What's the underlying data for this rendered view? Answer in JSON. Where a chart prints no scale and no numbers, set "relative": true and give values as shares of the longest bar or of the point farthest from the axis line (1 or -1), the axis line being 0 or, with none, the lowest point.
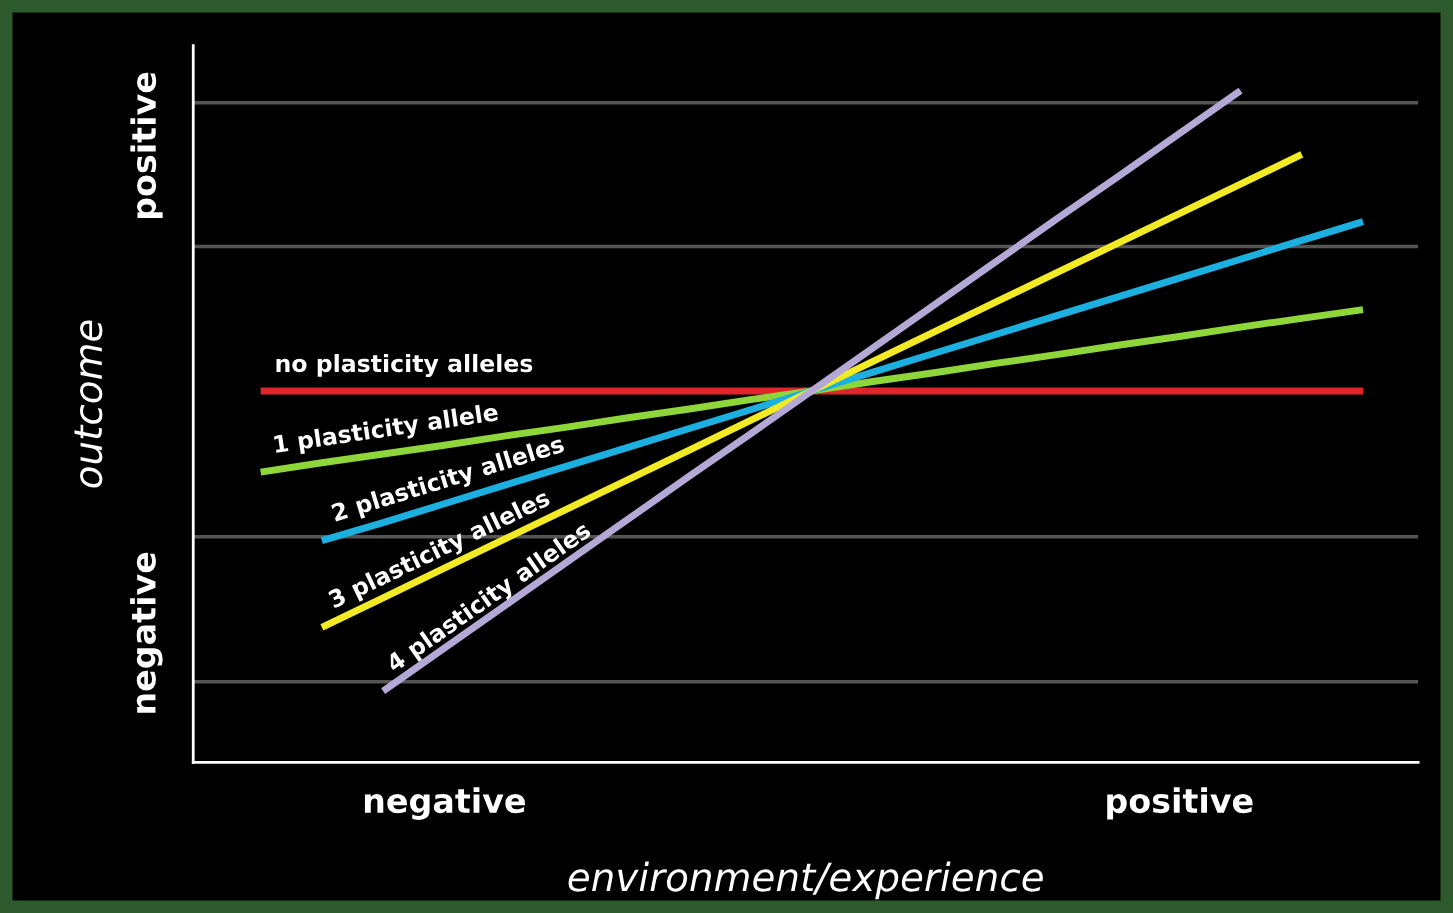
{
  "chart_data": {
    "type": "line",
    "relative": true,
    "xlabel": "environment/experience",
    "ylabel": "outcome",
    "annotations": [
      "positive",
      "negative"
    ],
    "categories": [
      null,
      null,
      null,
      "negative",
      null,
      null,
      null,
      null,
      null,
      null,
      null,
      null,
      null,
      null,
      null,
      "positive",
      null,
      null,
      null
    ],
    "grid": false,
    "legend": false,
    "marker": "none",
    "line_style": "solid",
    "ref_lines": [
      {
        "axis": "y",
        "value": 0.982,
        "color": "#555555"
      },
      {
        "axis": "y",
        "value": 0.768,
        "color": "#555555"
      },
      {
        "axis": "y",
        "value": 0.336,
        "color": "#555555"
      },
      {
        "axis": "y",
        "value": 0.12,
        "color": "#555555"
      }
    ],
    "series": [
      {
        "name": "no plasticity alleles",
        "color": "#e0262a",
        "values": [
          0.553,
          0.553,
          0.553,
          0.553,
          0.553,
          0.553,
          0.553,
          0.553,
          0.553,
          0.553,
          0.553,
          0.553,
          0.553,
          0.553,
          0.553,
          0.553,
          0.553,
          0.553,
          0.553
        ]
      },
      {
        "name": "1 plasticity allele",
        "color": "#8fd63a",
        "values": [
          0.432,
          0.446,
          0.459,
          0.472,
          0.486,
          0.499,
          0.513,
          0.526,
          0.54,
          0.553,
          0.567,
          0.58,
          0.594,
          0.607,
          0.621,
          0.634,
          0.648,
          0.661,
          0.674
        ]
      },
      {
        "name": "2 plasticity alleles",
        "color": "#1cb0e0",
        "values": [
          null,
          0.33,
          0.357,
          0.385,
          0.413,
          0.441,
          0.469,
          0.497,
          0.525,
          0.553,
          0.581,
          0.609,
          0.637,
          0.665,
          0.693,
          0.721,
          0.749,
          0.777,
          0.805
        ]
      },
      {
        "name": "3 plasticity alleles",
        "color": "#f2ea24",
        "values": [
          null,
          0.201,
          0.245,
          0.289,
          0.333,
          0.377,
          0.421,
          0.465,
          0.509,
          0.553,
          0.597,
          0.641,
          0.685,
          0.729,
          0.773,
          0.817,
          0.861,
          0.905,
          null
        ]
      },
      {
        "name": "4 plasticity alleles",
        "color": "#b4a9d6",
        "values": [
          null,
          null,
          0.106,
          0.17,
          0.234,
          0.298,
          0.362,
          0.426,
          0.489,
          0.553,
          0.617,
          0.681,
          0.745,
          0.809,
          0.872,
          0.936,
          1.0,
          null,
          null
        ]
      }
    ]
  }
}
